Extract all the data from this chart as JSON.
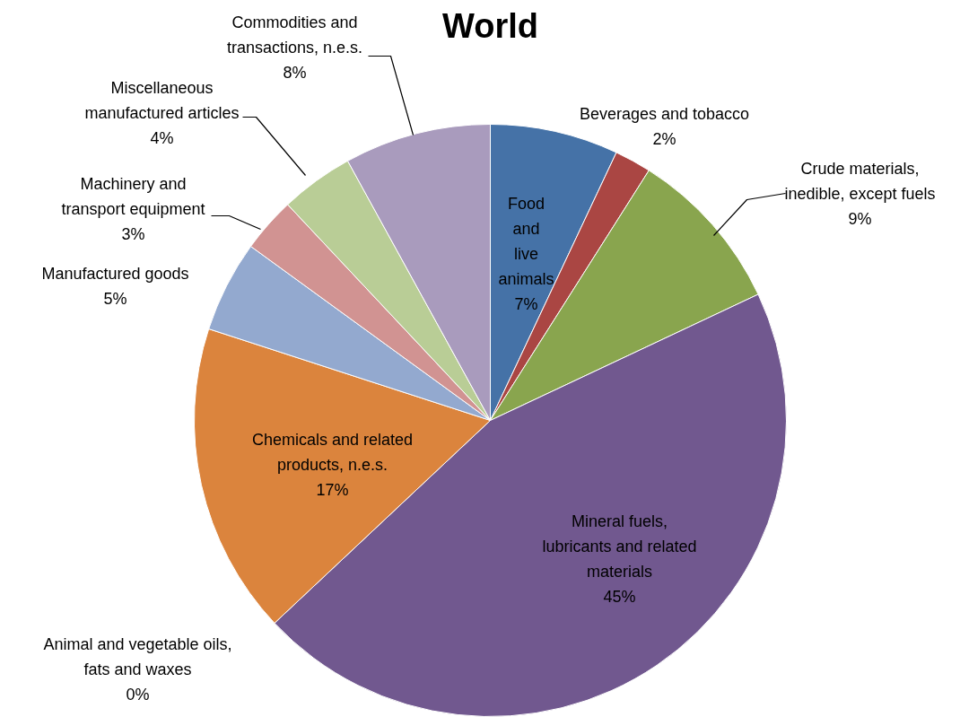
{
  "chart_data": {
    "type": "pie",
    "title": "World",
    "data_labels": true,
    "value_labels": [
      "7%",
      "2%",
      "9%",
      "45%",
      "0%",
      "17%",
      "5%",
      "3%",
      "4%",
      "8%"
    ],
    "categories": [
      "Food and live animals",
      "Beverages and tobacco",
      "Crude materials, inedible, except fuels",
      "Mineral fuels, lubricants and related materials",
      "Animal and vegetable oils, fats and waxes",
      "Chemicals and related products, n.e.s.",
      "Manufactured goods",
      "Machinery and transport equipment",
      "Miscellaneous manufactured articles",
      "Commodities and transactions, n.e.s."
    ],
    "values": [
      7,
      2,
      9,
      45,
      0,
      17,
      5,
      3,
      4,
      8
    ],
    "colors": [
      "#4572a7",
      "#aa4643",
      "#89a54e",
      "#71588f",
      "#4198af",
      "#db843d",
      "#93a9cf",
      "#d19392",
      "#b9cd96",
      "#a99bbd"
    ]
  }
}
